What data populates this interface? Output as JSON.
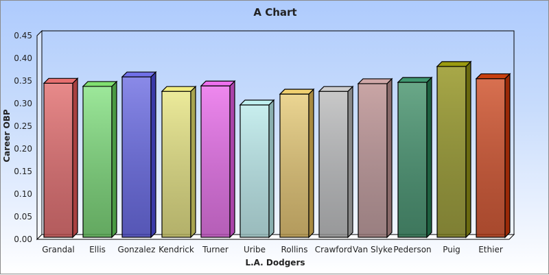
{
  "chart_data": {
    "type": "bar",
    "title": "A Chart",
    "xlabel": "L.A. Dodgers",
    "ylabel": "Career OBP",
    "ylim": [
      0,
      0.45
    ],
    "yticks": [
      "0.00",
      "0.05",
      "0.10",
      "0.15",
      "0.20",
      "0.25",
      "0.30",
      "0.35",
      "0.40",
      "0.45"
    ],
    "grid": false,
    "legend": "none",
    "style": "3d-bars",
    "categories": [
      "Grandal",
      "Ellis",
      "Gonzalez",
      "Kendrick",
      "Turner",
      "Uribe",
      "Rollins",
      "Crawford",
      "Van Slyke",
      "Pederson",
      "Puig",
      "Ethier"
    ],
    "values": [
      0.345,
      0.338,
      0.359,
      0.327,
      0.339,
      0.297,
      0.321,
      0.327,
      0.344,
      0.347,
      0.382,
      0.355
    ],
    "colors": [
      "#e88a8a",
      "#9de89a",
      "#8a8ae8",
      "#ecea9a",
      "#ee88ee",
      "#c8eeee",
      "#ebd592",
      "#c8c8c8",
      "#c9a5a5",
      "#6aa888",
      "#a8a848",
      "#d87050"
    ],
    "side_colors": [
      "#a84040",
      "#4a9a44",
      "#3a3aa8",
      "#a8a450",
      "#aa44aa",
      "#8ab0b0",
      "#a88a40",
      "#888888",
      "#8a6a6a",
      "#1e6040",
      "#6a6a10",
      "#9a2a08"
    ],
    "top_colors": [
      "#e87070",
      "#80e070",
      "#7070e8",
      "#f0ec80",
      "#ee70ee",
      "#c0f0f0",
      "#f0d070",
      "#cccccc",
      "#d0a8a8",
      "#409870",
      "#9a9a10",
      "#c84010"
    ]
  }
}
